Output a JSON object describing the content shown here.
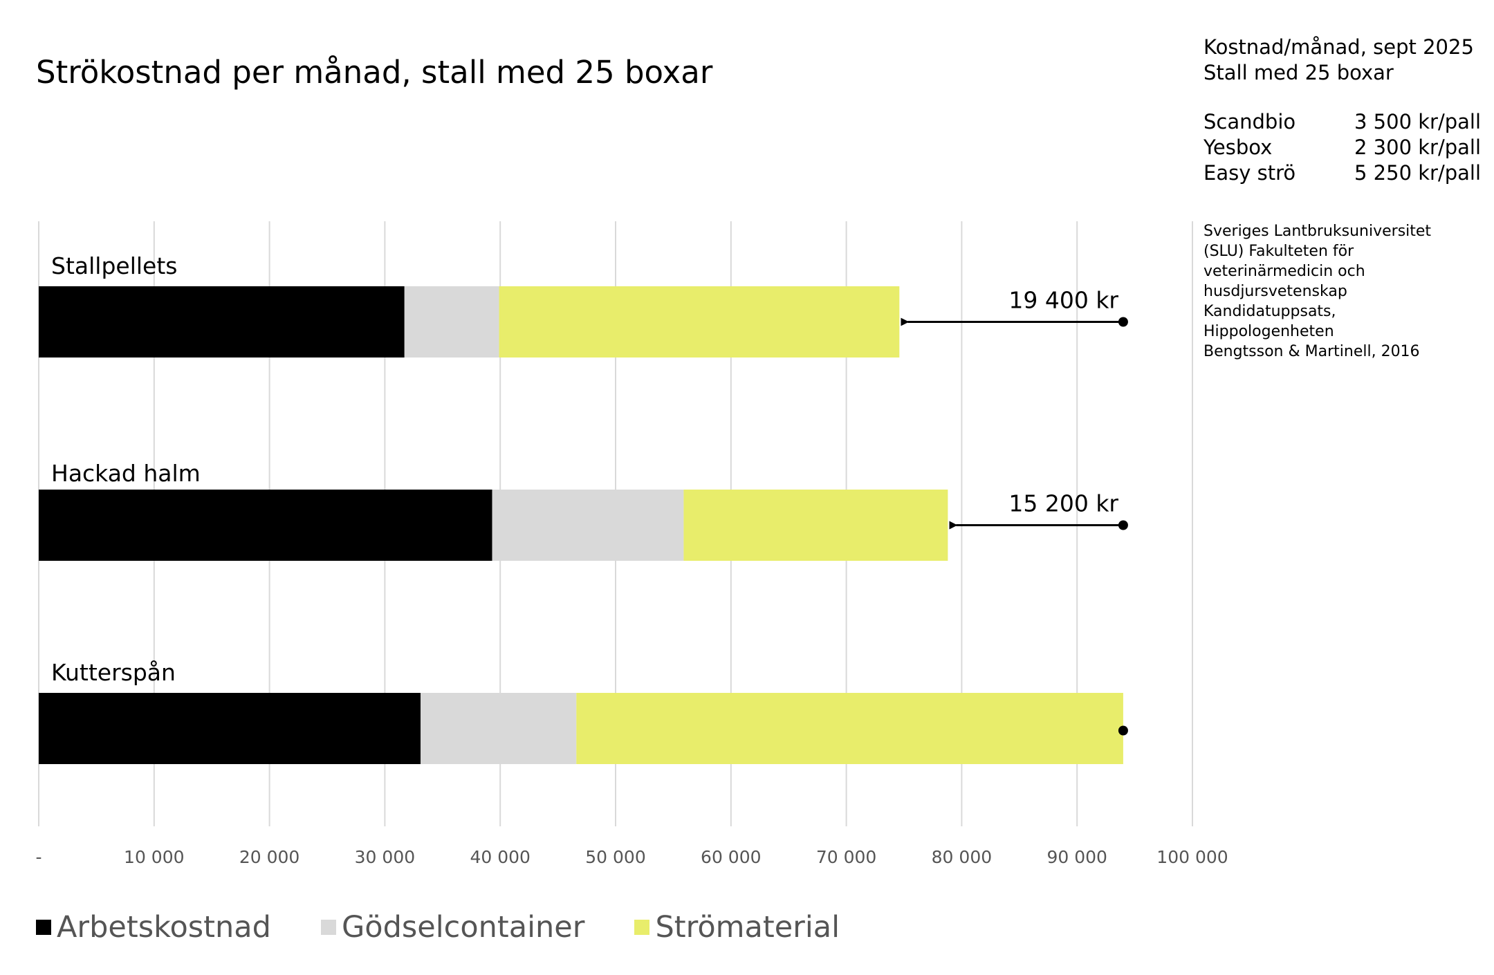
{
  "header": {
    "title": "Strökostnad per månad, stall med 25 boxar"
  },
  "info": {
    "line1": "Kostnad/månad, sept 2025",
    "line2": "Stall med 25 boxar"
  },
  "prices": [
    {
      "name": "Scandbio",
      "value": "3 500 kr/pall"
    },
    {
      "name": "Yesbox",
      "value": "2 300 kr/pall"
    },
    {
      "name": "Easy strö",
      "value": "5 250 kr/pall"
    }
  ],
  "source": [
    "Sveriges Lantbruksuniversitet",
    "(SLU) Fakulteten för",
    "veterinärmedicin och",
    "husdjursvetenskap",
    "Kandidatuppsats,",
    "Hippologenheten",
    "Bengtsson & Martinell, 2016"
  ],
  "legend": [
    {
      "label": "Arbetskostnad",
      "color": "#000000"
    },
    {
      "label": "Gödselcontainer",
      "color": "#d9d9d9"
    },
    {
      "label": "Strömaterial",
      "color": "#e8ed6b"
    }
  ],
  "chart_data": {
    "type": "bar",
    "orientation": "horizontal",
    "stacked": true,
    "categories": [
      "Stallpellets",
      "Hackad halm",
      "Kutterspån"
    ],
    "series": [
      {
        "name": "Arbetskostnad",
        "color": "#000000",
        "values": [
          31700,
          39300,
          33100
        ]
      },
      {
        "name": "Gödselcontainer",
        "color": "#d9d9d9",
        "values": [
          8200,
          16600,
          13500
        ]
      },
      {
        "name": "Strömaterial",
        "color": "#e8ed6b",
        "values": [
          34700,
          22900,
          47400
        ]
      }
    ],
    "xlim": [
      0,
      100000
    ],
    "xticks": [
      0,
      10000,
      20000,
      30000,
      40000,
      50000,
      60000,
      70000,
      80000,
      90000,
      100000
    ],
    "xtick_labels": [
      "-",
      "10 000",
      "20 000",
      "30 000",
      "40 000",
      "50 000",
      "60 000",
      "70 000",
      "80 000",
      "90 000",
      "100 000"
    ],
    "grid": true,
    "legend_position": "bottom-left",
    "reference_total": 94000,
    "annotations": [
      {
        "category": "Stallpellets",
        "text": "19 400 kr"
      },
      {
        "category": "Hackad halm",
        "text": "15 200 kr"
      }
    ]
  }
}
